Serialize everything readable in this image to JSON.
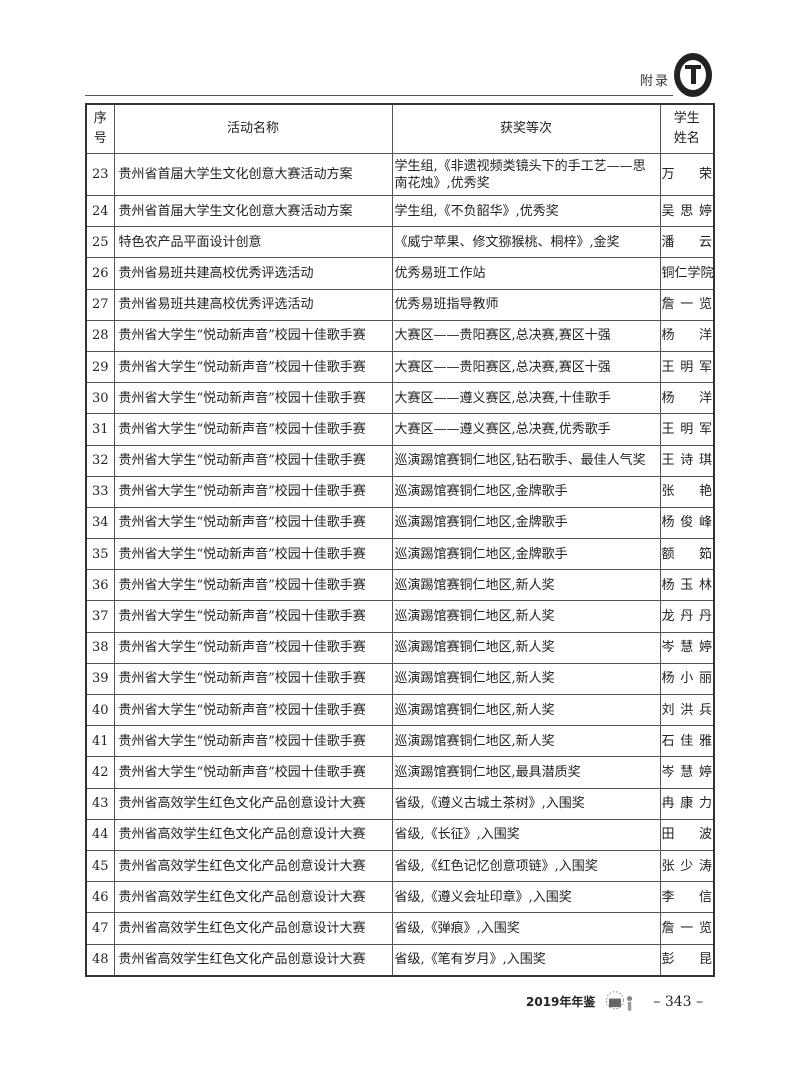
{
  "header": {
    "section": "附录",
    "logo": "university-seal"
  },
  "table": {
    "columns": [
      "序号",
      "活动名称",
      "获奖等次",
      "学生姓名"
    ],
    "rows": [
      [
        "23",
        "贵州省首届大学生文化创意大赛活动方案",
        "学生组,《非遗视频类镜头下的手工艺——思南花烛》,优秀奖",
        "万荣"
      ],
      [
        "24",
        "贵州省首届大学生文化创意大赛活动方案",
        "学生组,《不负韶华》,优秀奖",
        "吴思婷"
      ],
      [
        "25",
        "特色农产品平面设计创意",
        "《威宁苹果、修文猕猴桃、桐梓》,金奖",
        "潘云"
      ],
      [
        "26",
        "贵州省易班共建高校优秀评选活动",
        "优秀易班工作站",
        "铜仁学院"
      ],
      [
        "27",
        "贵州省易班共建高校优秀评选活动",
        "优秀易班指导教师",
        "詹一览"
      ],
      [
        "28",
        "贵州省大学生“悦动新声音”校园十佳歌手赛",
        "大赛区——贵阳赛区,总决赛,赛区十强",
        "杨洋"
      ],
      [
        "29",
        "贵州省大学生“悦动新声音”校园十佳歌手赛",
        "大赛区——贵阳赛区,总决赛,赛区十强",
        "王明军"
      ],
      [
        "30",
        "贵州省大学生“悦动新声音”校园十佳歌手赛",
        "大赛区——遵义赛区,总决赛,十佳歌手",
        "杨洋"
      ],
      [
        "31",
        "贵州省大学生“悦动新声音”校园十佳歌手赛",
        "大赛区——遵义赛区,总决赛,优秀歌手",
        "王明军"
      ],
      [
        "32",
        "贵州省大学生“悦动新声音”校园十佳歌手赛",
        "巡演踢馆赛铜仁地区,钻石歌手、最佳人气奖",
        "王诗琪"
      ],
      [
        "33",
        "贵州省大学生“悦动新声音”校园十佳歌手赛",
        "巡演踢馆赛铜仁地区,金牌歌手",
        "张艳"
      ],
      [
        "34",
        "贵州省大学生“悦动新声音”校园十佳歌手赛",
        "巡演踢馆赛铜仁地区,金牌歌手",
        "杨俊峰"
      ],
      [
        "35",
        "贵州省大学生“悦动新声音”校园十佳歌手赛",
        "巡演踢馆赛铜仁地区,金牌歌手",
        "额筎"
      ],
      [
        "36",
        "贵州省大学生“悦动新声音”校园十佳歌手赛",
        "巡演踢馆赛铜仁地区,新人奖",
        "杨玉林"
      ],
      [
        "37",
        "贵州省大学生“悦动新声音”校园十佳歌手赛",
        "巡演踢馆赛铜仁地区,新人奖",
        "龙丹丹"
      ],
      [
        "38",
        "贵州省大学生“悦动新声音”校园十佳歌手赛",
        "巡演踢馆赛铜仁地区,新人奖",
        "岑慧婷"
      ],
      [
        "39",
        "贵州省大学生“悦动新声音”校园十佳歌手赛",
        "巡演踢馆赛铜仁地区,新人奖",
        "杨小丽"
      ],
      [
        "40",
        "贵州省大学生“悦动新声音”校园十佳歌手赛",
        "巡演踢馆赛铜仁地区,新人奖",
        "刘洪兵"
      ],
      [
        "41",
        "贵州省大学生“悦动新声音”校园十佳歌手赛",
        "巡演踢馆赛铜仁地区,新人奖",
        "石佳雅"
      ],
      [
        "42",
        "贵州省大学生“悦动新声音”校园十佳歌手赛",
        "巡演踢馆赛铜仁地区,最具潜质奖",
        "岑慧婷"
      ],
      [
        "43",
        "贵州省高效学生红色文化产品创意设计大赛",
        "省级,《遵义古城土茶树》,入围奖",
        "冉康力"
      ],
      [
        "44",
        "贵州省高效学生红色文化产品创意设计大赛",
        "省级,《长征》,入围奖",
        "田波"
      ],
      [
        "45",
        "贵州省高效学生红色文化产品创意设计大赛",
        "省级,《红色记忆创意项链》,入围奖",
        "张少涛"
      ],
      [
        "46",
        "贵州省高效学生红色文化产品创意设计大赛",
        "省级,《遵义会址印章》,入围奖",
        "李信"
      ],
      [
        "47",
        "贵州省高效学生红色文化产品创意设计大赛",
        "省级,《弹痕》,入围奖",
        "詹一览"
      ],
      [
        "48",
        "贵州省高效学生红色文化产品创意设计大赛",
        "省级,《笔有岁月》,入围奖",
        "彭昆"
      ]
    ]
  },
  "footer": {
    "yearbook": "2019年年鉴",
    "page": "– 343 –",
    "emblem": "yearbook-mascot"
  }
}
